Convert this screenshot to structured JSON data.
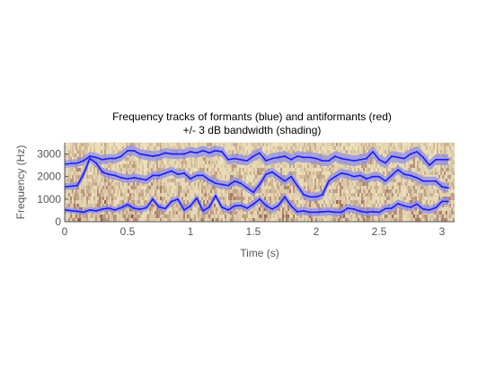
{
  "chart_data": {
    "type": "line",
    "title": "Frequency tracks of formants (blue) and antiformants (red)",
    "subtitle": "+/- 3 dB bandwidth (shading)",
    "xlabel": "Time (s)",
    "ylabel": "Frequency (Hz)",
    "xlim": [
      0,
      3.1
    ],
    "ylim": [
      0,
      3500
    ],
    "xticks": [
      0,
      0.5,
      1,
      1.5,
      2,
      2.5,
      3
    ],
    "xtick_labels": [
      "0",
      "0.5",
      "1",
      "1.5",
      "2",
      "2.5",
      "3"
    ],
    "yticks": [
      0,
      1000,
      2000,
      3000
    ],
    "yticks_labels": [
      "0",
      "1000",
      "2000",
      "3000"
    ],
    "background": "spectrogram",
    "grid": false,
    "colors": {
      "formant": "#1a1aff",
      "bandwidth": "#8f8fe6",
      "spectrogram_low": "#f2eac2",
      "spectrogram_high": "#6a1e1e",
      "axis": "#555555"
    },
    "series": [
      {
        "x": [
          0,
          0.1,
          0.15,
          0.2,
          0.25,
          0.3,
          0.35,
          0.4,
          0.45,
          0.5,
          0.55,
          0.6,
          0.65,
          0.7,
          0.75,
          0.8,
          0.85,
          0.9,
          0.95,
          1.0,
          1.05,
          1.1,
          1.15,
          1.2,
          1.25,
          1.3,
          1.35,
          1.4,
          1.45,
          1.5,
          1.55,
          1.6,
          1.65,
          1.7,
          1.75,
          1.8,
          1.85,
          1.9,
          1.95,
          2.0,
          2.05,
          2.1,
          2.15,
          2.2,
          2.25,
          2.3,
          2.35,
          2.4,
          2.45,
          2.5,
          2.55,
          2.6,
          2.65,
          2.7,
          2.75,
          2.8,
          2.85,
          2.9,
          2.95,
          3.0,
          3.05
        ],
        "y": [
          520,
          460,
          420,
          520,
          480,
          560,
          600,
          520,
          620,
          760,
          600,
          550,
          620,
          1000,
          650,
          580,
          900,
          1000,
          520,
          700,
          1050,
          480,
          650,
          1150,
          640,
          520,
          700,
          720,
          600,
          780,
          1000,
          720,
          560,
          720,
          1100,
          700,
          440,
          480,
          420,
          420,
          440,
          460,
          420,
          420,
          600,
          560,
          460,
          420,
          440,
          420,
          580,
          600,
          800,
          700,
          640,
          780,
          560,
          520,
          620,
          900,
          900
        ],
        "bandwidth": [
          120,
          120,
          120,
          130,
          130,
          130,
          140,
          140,
          150,
          150,
          150,
          150,
          150,
          160,
          160,
          160,
          160,
          160,
          160,
          170,
          170,
          170,
          170,
          170,
          170,
          170,
          170,
          170,
          170,
          170,
          180,
          180,
          180,
          180,
          180,
          180,
          180,
          180,
          180,
          180,
          180,
          180,
          180,
          180,
          180,
          180,
          180,
          180,
          180,
          180,
          180,
          180,
          180,
          180,
          180,
          180,
          180,
          180,
          180,
          180,
          180
        ]
      },
      {
        "x": [
          0,
          0.1,
          0.15,
          0.2,
          0.25,
          0.3,
          0.35,
          0.4,
          0.45,
          0.5,
          0.55,
          0.6,
          0.65,
          0.7,
          0.75,
          0.8,
          0.85,
          0.9,
          0.95,
          1.0,
          1.05,
          1.1,
          1.15,
          1.2,
          1.25,
          1.3,
          1.35,
          1.4,
          1.45,
          1.5,
          1.55,
          1.6,
          1.65,
          1.7,
          1.75,
          1.8,
          1.85,
          1.9,
          1.95,
          2.0,
          2.05,
          2.1,
          2.15,
          2.2,
          2.25,
          2.3,
          2.35,
          2.4,
          2.45,
          2.5,
          2.55,
          2.6,
          2.65,
          2.7,
          2.75,
          2.8,
          2.85,
          2.9,
          2.95,
          3.0,
          3.05
        ],
        "y": [
          1550,
          1600,
          2100,
          2800,
          2600,
          2200,
          2100,
          2050,
          1950,
          1900,
          1950,
          1900,
          1850,
          2050,
          2050,
          2150,
          2250,
          2100,
          2150,
          1900,
          2050,
          2050,
          1850,
          1700,
          1650,
          1600,
          1800,
          1700,
          1500,
          1300,
          1650,
          2100,
          2200,
          2000,
          1800,
          2000,
          1600,
          1200,
          1100,
          1100,
          1200,
          1800,
          2000,
          2150,
          2100,
          2000,
          2050,
          1900,
          2000,
          2000,
          1800,
          2050,
          2300,
          2100,
          2050,
          1950,
          1800,
          1800,
          1800,
          1550,
          1500
        ],
        "bandwidth": [
          150,
          170,
          180,
          190,
          190,
          190,
          190,
          190,
          190,
          190,
          190,
          190,
          190,
          190,
          190,
          190,
          190,
          190,
          190,
          190,
          190,
          190,
          190,
          190,
          190,
          190,
          190,
          190,
          190,
          190,
          200,
          200,
          200,
          200,
          200,
          200,
          200,
          200,
          200,
          200,
          200,
          200,
          200,
          200,
          200,
          200,
          200,
          200,
          200,
          200,
          200,
          200,
          200,
          200,
          200,
          200,
          200,
          200,
          200,
          200,
          200
        ]
      },
      {
        "x": [
          0,
          0.1,
          0.15,
          0.2,
          0.25,
          0.3,
          0.35,
          0.4,
          0.45,
          0.5,
          0.55,
          0.6,
          0.65,
          0.7,
          0.75,
          0.8,
          0.85,
          0.9,
          0.95,
          1.0,
          1.05,
          1.1,
          1.15,
          1.2,
          1.25,
          1.3,
          1.35,
          1.4,
          1.45,
          1.5,
          1.55,
          1.6,
          1.65,
          1.7,
          1.75,
          1.8,
          1.85,
          1.9,
          1.95,
          2.0,
          2.05,
          2.1,
          2.15,
          2.2,
          2.25,
          2.3,
          2.35,
          2.4,
          2.45,
          2.5,
          2.55,
          2.6,
          2.65,
          2.7,
          2.75,
          2.8,
          2.85,
          2.9,
          2.95,
          3.0,
          3.05
        ],
        "y": [
          2550,
          2600,
          2700,
          2900,
          2850,
          2750,
          2800,
          2800,
          2900,
          3150,
          3150,
          3000,
          2950,
          2900,
          2950,
          3050,
          3000,
          3000,
          3000,
          3100,
          3050,
          3150,
          3050,
          3150,
          3100,
          2750,
          2800,
          2750,
          2700,
          2900,
          3050,
          2700,
          2800,
          2850,
          2900,
          2750,
          2900,
          2850,
          2850,
          2800,
          2700,
          2700,
          2900,
          2800,
          2750,
          2700,
          2750,
          2800,
          3100,
          2750,
          2600,
          2900,
          2850,
          2800,
          3000,
          3100,
          2850,
          2500,
          2750,
          2750,
          2750
        ],
        "bandwidth": [
          160,
          180,
          190,
          200,
          200,
          200,
          200,
          200,
          220,
          220,
          220,
          220,
          220,
          220,
          220,
          220,
          220,
          220,
          220,
          220,
          220,
          220,
          220,
          220,
          220,
          220,
          220,
          220,
          220,
          220,
          240,
          240,
          240,
          240,
          240,
          240,
          240,
          240,
          240,
          240,
          240,
          240,
          240,
          240,
          240,
          240,
          240,
          240,
          240,
          240,
          240,
          240,
          240,
          240,
          240,
          240,
          240,
          240,
          240,
          240,
          240
        ]
      }
    ]
  }
}
